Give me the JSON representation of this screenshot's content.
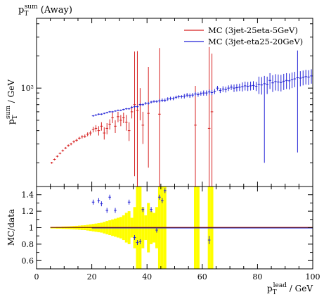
{
  "chart_data": [
    {
      "panel": "main",
      "type": "scatter",
      "title": "p_T^sum (Away)",
      "title_base": "p",
      "title_sub": "T",
      "title_sup": "sum",
      "title_rest": " (Away)",
      "ylabel": "p_T^sum / GeV",
      "ylabel_base": "p",
      "ylabel_sub": "T",
      "ylabel_sup": "sum",
      "ylabel_rest": " / GeV",
      "y_scale": "log",
      "ylim": [
        12,
        450
      ],
      "xlim": [
        0,
        100
      ],
      "y_ticks": [
        100
      ],
      "y_tick_labels": [
        "10²"
      ],
      "legend_position": "top-right",
      "colors": {
        "series1": "#d62020",
        "series2": "#2020d6",
        "band": "#ffff00"
      },
      "series": [
        {
          "name": "MC (3jet-25eta-5GeV)",
          "color": "#d62020",
          "x": [
            5.5,
            6.5,
            7.5,
            8.5,
            9.5,
            10.5,
            11.5,
            12.5,
            13.5,
            14.5,
            15.5,
            16.5,
            17.5,
            18.5,
            19.5,
            20.5,
            21.5,
            22.5,
            23.5,
            24.5,
            25.5,
            26.5,
            27.5,
            28.5,
            29.5,
            30.5,
            31.5,
            32.5,
            33.5,
            34.5,
            35.5,
            36.5,
            37.5,
            38.5,
            40.5,
            44.5,
            57.5,
            62.5,
            63.5
          ],
          "y": [
            20,
            21.5,
            23,
            24.5,
            26,
            27.5,
            29,
            30,
            31.5,
            32.5,
            34,
            35,
            35.5,
            37,
            38,
            41,
            42,
            40,
            44,
            38,
            42,
            46,
            53,
            44,
            54,
            50,
            53,
            48,
            40,
            60,
            70,
            62,
            70,
            45,
            58,
            57,
            45,
            42,
            60
          ],
          "yerr_lo": [
            0.4,
            0.4,
            0.5,
            0.5,
            0.6,
            0.6,
            0.7,
            0.8,
            0.9,
            1,
            1,
            1.2,
            1.3,
            1.5,
            2,
            2.5,
            3,
            4,
            4,
            5,
            5,
            5,
            6,
            6,
            6,
            6,
            6,
            8,
            8,
            8,
            55,
            56,
            20,
            15,
            40,
            45,
            40,
            38,
            55
          ],
          "yerr_hi": [
            0.4,
            0.4,
            0.5,
            0.5,
            0.6,
            0.6,
            0.7,
            0.8,
            0.9,
            1,
            1,
            1.2,
            1.3,
            1.5,
            2,
            2.5,
            3,
            4,
            4,
            5,
            5,
            5,
            6,
            6,
            6,
            6,
            6,
            8,
            8,
            8,
            150,
            160,
            30,
            15,
            100,
            180,
            60,
            200,
            150
          ]
        },
        {
          "name": "MC (3jet-eta25-20GeV)",
          "color": "#2020d6",
          "x": [
            20.5,
            21.5,
            22.5,
            23.5,
            24.5,
            25.5,
            26.5,
            27.5,
            28.5,
            29.5,
            30.5,
            31.5,
            32.5,
            33.5,
            34.5,
            35.5,
            36.5,
            37.5,
            38.5,
            39.5,
            40.5,
            41.5,
            42.5,
            43.5,
            44.5,
            45.5,
            46.5,
            47.5,
            48.5,
            49.5,
            50.5,
            51.5,
            52.5,
            53.5,
            54.5,
            55.5,
            56.5,
            57.5,
            58.5,
            59.5,
            60.5,
            61.5,
            62.5,
            63.5,
            64.5,
            65.5,
            66.5,
            67.5,
            68.5,
            69.5,
            70.5,
            71.5,
            72.5,
            73.5,
            74.5,
            75.5,
            76.5,
            77.5,
            78.5,
            79.5,
            80.5,
            81.5,
            82.5,
            83.5,
            84.5,
            85.5,
            86.5,
            87.5,
            88.5,
            89.5,
            90.5,
            91.5,
            92.5,
            93.5,
            94.5,
            95.5,
            96.5,
            97.5,
            98.5,
            99.5
          ],
          "y": [
            55,
            56,
            57,
            57,
            58,
            59,
            60,
            60,
            61,
            62,
            62,
            63,
            64,
            64,
            66,
            67,
            67,
            70,
            70,
            72,
            72,
            74,
            75,
            75,
            76,
            77,
            77,
            79,
            80,
            80,
            82,
            83,
            83,
            84,
            86,
            85,
            86,
            88,
            87,
            89,
            90,
            90,
            92,
            91,
            93,
            100,
            95,
            98,
            97,
            100,
            102,
            100,
            101,
            102,
            103,
            105,
            104,
            105,
            106,
            104,
            108,
            107,
            110,
            108,
            118,
            112,
            115,
            114,
            113,
            116,
            118,
            117,
            120,
            122,
            125,
            124,
            126,
            128,
            127,
            130
          ],
          "yerr_lo": [
            1,
            1,
            1,
            1,
            1,
            1,
            1,
            1,
            1,
            1,
            1,
            1,
            1.2,
            1.2,
            1.5,
            1.5,
            1.5,
            2,
            2,
            2,
            2,
            2,
            2,
            2,
            3,
            3,
            3,
            3,
            3,
            3,
            3,
            3,
            3,
            4,
            4,
            4,
            4,
            4,
            4,
            4,
            5,
            5,
            5,
            5,
            5,
            5,
            5,
            6,
            6,
            6,
            6,
            8,
            8,
            8,
            10,
            10,
            10,
            10,
            10,
            10,
            20,
            20,
            90,
            20,
            20,
            20,
            20,
            20,
            20,
            20,
            20,
            20,
            20,
            20,
            100,
            20,
            20,
            20,
            20,
            20
          ],
          "yerr_hi": [
            1,
            1,
            1,
            1,
            1,
            1,
            1,
            1,
            1,
            1,
            1,
            1,
            1.2,
            1.2,
            1.5,
            1.5,
            1.5,
            2,
            2,
            2,
            2,
            2,
            2,
            2,
            3,
            3,
            3,
            3,
            3,
            3,
            3,
            3,
            3,
            4,
            4,
            4,
            4,
            4,
            4,
            4,
            5,
            5,
            5,
            5,
            5,
            5,
            5,
            6,
            6,
            6,
            6,
            8,
            8,
            8,
            10,
            10,
            10,
            10,
            10,
            10,
            20,
            20,
            20,
            20,
            20,
            20,
            20,
            20,
            20,
            20,
            20,
            20,
            20,
            20,
            100,
            20,
            20,
            20,
            20,
            20
          ]
        }
      ]
    },
    {
      "panel": "ratio",
      "type": "scatter",
      "ylabel": "MC/data",
      "xlabel": "p_T^lead / GeV",
      "xlabel_base": "p",
      "xlabel_sub": "T",
      "xlabel_sup": "lead",
      "xlabel_rest": " / GeV",
      "xlim": [
        0,
        100
      ],
      "ylim": [
        0.5,
        1.5
      ],
      "x_ticks": [
        0,
        20,
        40,
        60,
        80,
        100
      ],
      "x_tick_labels": [
        "0",
        "20",
        "40",
        "60",
        "80",
        "100"
      ],
      "y_ticks": [
        0.6,
        0.8,
        1,
        1.2,
        1.4
      ],
      "y_tick_labels": [
        "0.6",
        "0.8",
        "1",
        "1.2",
        "1.4"
      ],
      "reference_line": 1,
      "band": {
        "x_lo": [
          5,
          6,
          7,
          8,
          9,
          10,
          11,
          12,
          13,
          14,
          15,
          16,
          17,
          18,
          19,
          20,
          21,
          22,
          23,
          24,
          25,
          26,
          27,
          28,
          29,
          30,
          31,
          32,
          33,
          34,
          35,
          36,
          37,
          38,
          39,
          40,
          41,
          42,
          43,
          44,
          45,
          46,
          57,
          58,
          62,
          63
        ],
        "x_hi": [
          6,
          7,
          8,
          9,
          10,
          11,
          12,
          13,
          14,
          15,
          16,
          17,
          18,
          19,
          20,
          21,
          22,
          23,
          24,
          25,
          26,
          27,
          28,
          29,
          30,
          31,
          32,
          33,
          34,
          35,
          36,
          37,
          38,
          39,
          40,
          41,
          42,
          43,
          44,
          45,
          46,
          47,
          58,
          59,
          63,
          64
        ],
        "half_width": [
          0.01,
          0.01,
          0.012,
          0.012,
          0.014,
          0.015,
          0.016,
          0.018,
          0.02,
          0.022,
          0.025,
          0.028,
          0.03,
          0.035,
          0.04,
          0.045,
          0.05,
          0.055,
          0.06,
          0.07,
          0.08,
          0.09,
          0.1,
          0.11,
          0.12,
          0.13,
          0.15,
          0.18,
          0.2,
          0.12,
          0.25,
          0.6,
          0.6,
          0.25,
          0.15,
          0.3,
          0.2,
          0.18,
          0.25,
          0.6,
          0.6,
          0.6,
          0.6,
          0.6,
          0.6,
          0.6
        ]
      },
      "series": [
        {
          "name": "MC (3jet-eta25-20GeV)",
          "color": "#2020d6",
          "x": [
            20.5,
            22.5,
            23.5,
            25.5,
            26.5,
            28.5,
            33.5,
            35.5,
            36.5,
            37.5,
            38.5,
            41.5,
            43.5,
            44.5,
            45.5,
            46.5,
            62.5
          ],
          "y": [
            1.31,
            1.33,
            1.29,
            1.21,
            1.37,
            1.21,
            1.31,
            0.88,
            0.82,
            0.83,
            1.22,
            1.22,
            0.97,
            1.37,
            1.33,
            1.45,
            0.85
          ],
          "yerr": [
            0.03,
            0.03,
            0.03,
            0.03,
            0.03,
            0.03,
            0.03,
            0.03,
            0.03,
            0.03,
            0.03,
            0.03,
            0.03,
            0.03,
            0.03,
            0.03,
            0.05
          ]
        }
      ]
    }
  ]
}
